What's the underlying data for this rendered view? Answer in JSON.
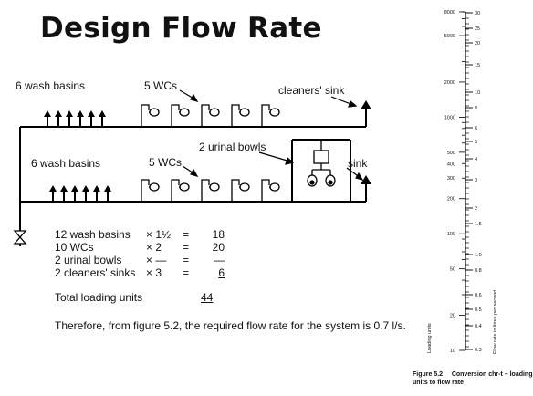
{
  "title": "Design Flow Rate",
  "diagram": {
    "top_basins": "6 wash basins",
    "top_wcs": "5 WCs",
    "cleaners_sink": "cleaners' sink",
    "urinals": "2 urinal bowls",
    "bottom_basins": "6 wash basins",
    "bottom_wcs": "5 WCs",
    "sink": "sink"
  },
  "calculation": {
    "rows": [
      {
        "item": "12 wash basins",
        "factor": "× 1½",
        "eq": "=",
        "value": "18"
      },
      {
        "item": "10 WCs",
        "factor": "× 2",
        "eq": "=",
        "value": "20"
      },
      {
        "item": "2 urinal bowls",
        "factor": "× —",
        "eq": "=",
        "value": "—"
      },
      {
        "item": "2 cleaners' sinks",
        "factor": "× 3",
        "eq": "=",
        "value": "6"
      }
    ],
    "total_label": "Total loading units",
    "total_value": "44",
    "conclusion": "Therefore, from figure 5.2, the required flow rate for the system is 0.7 l/s."
  },
  "chart_data": {
    "type": "nomogram",
    "left_axis": {
      "label": "Loading units",
      "scale": "log",
      "range": [
        10,
        8000
      ],
      "tick_labels": [
        "8000",
        "5000",
        "2000",
        "1000",
        "500",
        "400",
        "300",
        "200",
        "100",
        "50",
        "20",
        "10"
      ]
    },
    "right_axis": {
      "label": "Flow rate in litres per second",
      "tick_labels": [
        "30",
        "25",
        "20",
        "15",
        "10",
        "8",
        "6",
        "5",
        "4",
        "3",
        "2",
        "1.5",
        "1.0",
        "0.8",
        "0.6",
        "0.5",
        "0.4",
        "0.3"
      ]
    },
    "caption_label": "Figure 5.2",
    "caption_text": "Conversion chr-t – loading units to flow rate"
  }
}
